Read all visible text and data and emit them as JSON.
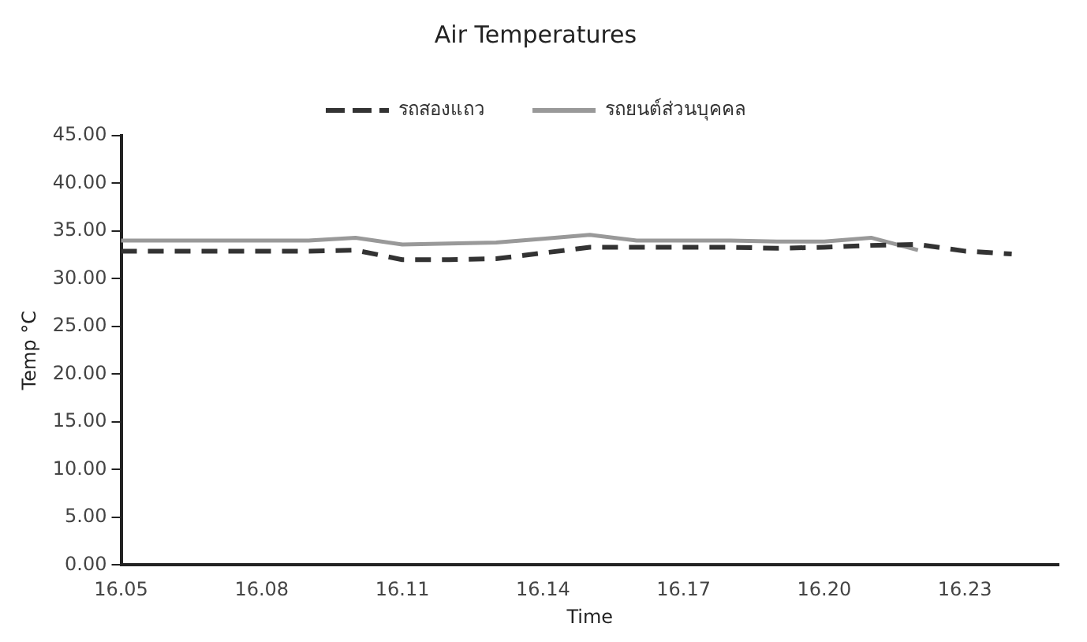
{
  "chart_data": {
    "type": "line",
    "title": "Air Temperatures",
    "xlabel": "Time",
    "ylabel": "Temp °C",
    "categories": [
      "16.05",
      null,
      null,
      "16.08",
      null,
      null,
      "16.11",
      null,
      null,
      "16.14",
      null,
      null,
      "16.17",
      null,
      null,
      "16.20",
      null,
      null,
      "16.23",
      null,
      null
    ],
    "series": [
      {
        "name": "รถสองแถว",
        "color": "#333333",
        "line_style": "dashed",
        "values": [
          32.9,
          32.9,
          32.9,
          32.9,
          32.9,
          33.0,
          32.0,
          32.0,
          32.1,
          32.7,
          33.3,
          33.3,
          33.3,
          33.3,
          33.2,
          33.3,
          33.5,
          33.6,
          32.9,
          32.6,
          null
        ]
      },
      {
        "name": "รถยนต์ส่วนบุคคล",
        "color": "#999999",
        "line_style": "solid",
        "values": [
          34.0,
          34.0,
          34.0,
          34.0,
          34.0,
          34.3,
          33.6,
          33.7,
          33.8,
          34.2,
          34.6,
          34.0,
          34.0,
          34.0,
          33.9,
          33.9,
          34.3,
          33.0,
          null,
          null,
          null
        ]
      }
    ],
    "ylim": [
      0,
      45
    ],
    "yticks": [
      {
        "value": 0,
        "label": "0.00"
      },
      {
        "value": 5,
        "label": "5.00"
      },
      {
        "value": 10,
        "label": "10.00"
      },
      {
        "value": 15,
        "label": "15.00"
      },
      {
        "value": 20,
        "label": "20.00"
      },
      {
        "value": 25,
        "label": "25.00"
      },
      {
        "value": 30,
        "label": "30.00"
      },
      {
        "value": 35,
        "label": "35.00"
      },
      {
        "value": 40,
        "label": "40.00"
      },
      {
        "value": 45,
        "label": "45.00"
      }
    ],
    "grid": false,
    "legend": "top",
    "marker": "none"
  }
}
